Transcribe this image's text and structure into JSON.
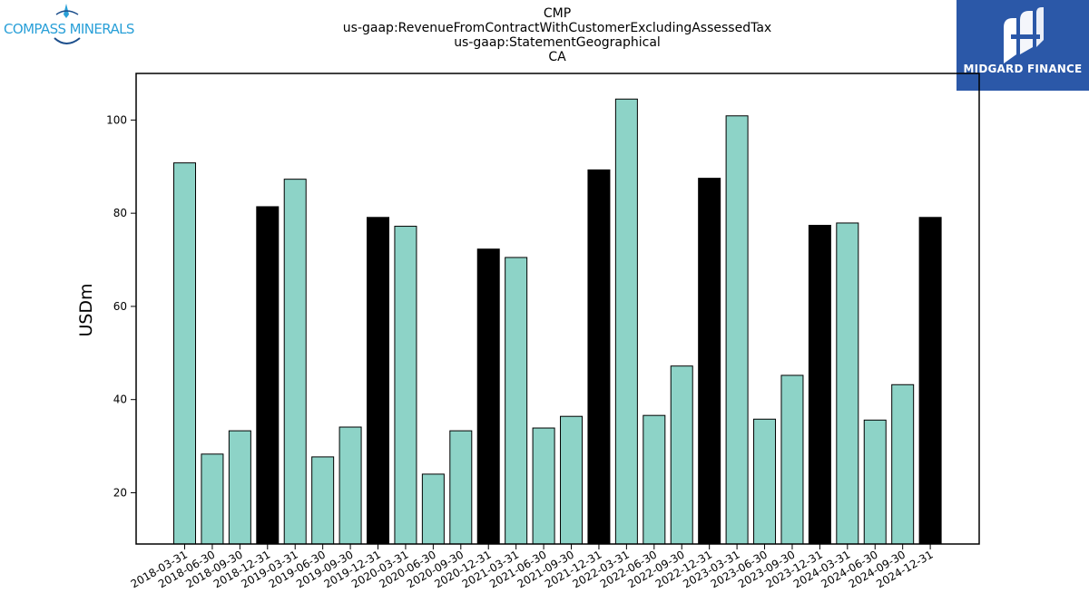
{
  "header": {
    "title_lines": [
      "CMP",
      "us-gaap:RevenueFromContractWithCustomerExcludingAssessedTax",
      "us-gaap:StatementGeographical",
      "CA"
    ]
  },
  "logos": {
    "left": "COMPASS MINERALS",
    "right": "MIDGARD FINANCE",
    "right_bg": "#2b58a8",
    "left_color": "#2aa0d8"
  },
  "chart_data": {
    "type": "bar",
    "title": "",
    "xlabel": "",
    "ylabel": "USDm",
    "ylim": [
      9,
      110
    ],
    "yticks": [
      20,
      40,
      60,
      80,
      100
    ],
    "grid": false,
    "colors": {
      "quarter": "#8dd3c7",
      "year_end": "#000000",
      "edge": "#000000"
    },
    "categories": [
      "2018-03-31",
      "2018-06-30",
      "2018-09-30",
      "2018-12-31",
      "2019-03-31",
      "2019-06-30",
      "2019-09-30",
      "2019-12-31",
      "2020-03-31",
      "2020-06-30",
      "2020-09-30",
      "2020-12-31",
      "2021-03-31",
      "2021-06-30",
      "2021-09-30",
      "2021-12-31",
      "2022-03-31",
      "2022-06-30",
      "2022-09-30",
      "2022-12-31",
      "2023-03-31",
      "2023-06-30",
      "2023-09-30",
      "2023-12-31",
      "2024-03-31",
      "2024-06-30",
      "2024-09-30",
      "2024-12-31"
    ],
    "values": [
      90.8,
      28.3,
      33.3,
      81.4,
      87.3,
      27.7,
      34.1,
      79.1,
      77.2,
      24.0,
      33.3,
      72.3,
      70.5,
      33.9,
      36.4,
      89.3,
      104.5,
      36.6,
      47.2,
      87.5,
      100.9,
      35.8,
      45.2,
      77.4,
      77.9,
      35.6,
      43.2,
      79.1
    ]
  }
}
